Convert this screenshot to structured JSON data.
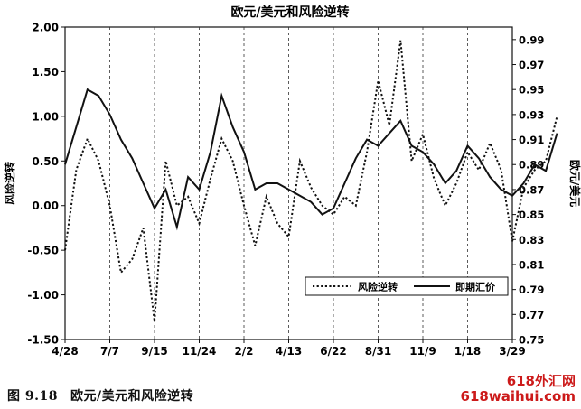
{
  "chart_data": {
    "type": "line",
    "title": "欧元/美元和风险逆转",
    "ylabel_left": "风险逆转",
    "ylabel_right": "欧元/美元",
    "ylim_left": [
      -1.5,
      2.0
    ],
    "ylim_right": [
      0.75,
      1.0
    ],
    "yticks_left": [
      "2.00",
      "1.50",
      "1.00",
      "0.50",
      "0.00",
      "-0.50",
      "-1.00",
      "-1.50"
    ],
    "yticks_right": [
      "0.99",
      "0.97",
      "0.95",
      "0.93",
      "0.91",
      "0.89",
      "0.87",
      "0.85",
      "0.83",
      "0.81",
      "0.79",
      "0.77",
      "0.75"
    ],
    "xticks": [
      "4/28",
      "7/7",
      "9/15",
      "11/24",
      "2/2",
      "4/13",
      "6/22",
      "8/31",
      "11/9",
      "1/18",
      "3/29"
    ],
    "grid": "vertical-dashed",
    "legend": {
      "position": "bottom-right",
      "entries": [
        "风险逆转",
        "即期汇价"
      ]
    },
    "x": [
      0,
      0.25,
      0.5,
      0.75,
      1,
      1.25,
      1.5,
      1.75,
      2,
      2.25,
      2.5,
      2.75,
      3,
      3.25,
      3.5,
      3.75,
      4,
      4.25,
      4.5,
      4.75,
      5,
      5.25,
      5.5,
      5.75,
      6,
      6.25,
      6.5,
      6.75,
      7,
      7.25,
      7.5,
      7.75,
      8,
      8.25,
      8.5,
      8.75,
      9,
      9.25,
      9.5,
      9.75,
      10,
      10.25,
      10.5,
      10.75,
      11
    ],
    "series": [
      {
        "name": "风险逆转",
        "axis": "left",
        "style": "dotted",
        "values": [
          -0.5,
          0.4,
          0.75,
          0.5,
          0.0,
          -0.75,
          -0.6,
          -0.25,
          -1.3,
          0.5,
          0.0,
          0.1,
          -0.2,
          0.3,
          0.75,
          0.5,
          0.0,
          -0.45,
          0.1,
          -0.2,
          -0.35,
          0.5,
          0.2,
          0.0,
          -0.1,
          0.1,
          0.0,
          0.6,
          1.4,
          0.9,
          1.85,
          0.5,
          0.8,
          0.3,
          0.0,
          0.25,
          0.6,
          0.4,
          0.7,
          0.4,
          -0.4,
          0.2,
          0.4,
          0.5,
          1.0
        ]
      },
      {
        "name": "即期汇价",
        "axis": "right",
        "style": "solid",
        "values": [
          0.89,
          0.92,
          0.95,
          0.945,
          0.93,
          0.91,
          0.895,
          0.875,
          0.855,
          0.87,
          0.84,
          0.88,
          0.87,
          0.9,
          0.945,
          0.92,
          0.9,
          0.87,
          0.875,
          0.875,
          0.87,
          0.865,
          0.86,
          0.85,
          0.855,
          0.875,
          0.895,
          0.91,
          0.905,
          0.915,
          0.925,
          0.905,
          0.9,
          0.89,
          0.875,
          0.885,
          0.905,
          0.895,
          0.88,
          0.87,
          0.865,
          0.875,
          0.89,
          0.885,
          0.915
        ]
      }
    ]
  },
  "caption": {
    "number": "图 9.18",
    "text": "欧元/美元和风险逆转"
  },
  "watermark": {
    "line1": "618外汇网",
    "line2": "618waihui.com"
  }
}
